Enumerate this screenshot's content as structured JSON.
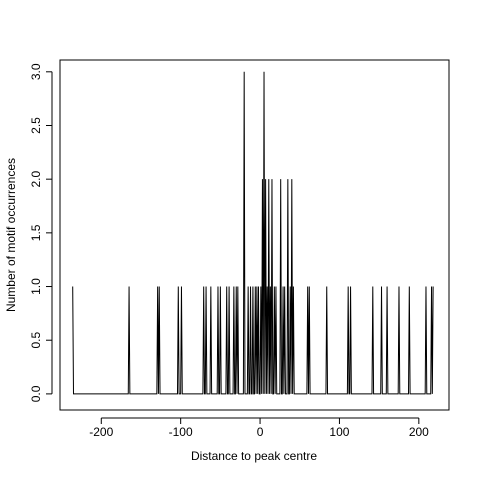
{
  "chart_data": {
    "type": "line",
    "xlabel": "Distance to peak centre",
    "ylabel": "Number of motif occurrences",
    "color": "#000000",
    "x": [
      -236,
      -235,
      -166,
      -165,
      -164,
      -130,
      -129,
      -128,
      -127,
      -126,
      -104,
      -103,
      -102,
      -100,
      -99,
      -98,
      -72,
      -71,
      -70,
      -69,
      -68,
      -67,
      -63,
      -62,
      -61,
      -54,
      -53,
      -52,
      -51,
      -50,
      -49,
      -43,
      -42,
      -41,
      -40,
      -39,
      -38,
      -34,
      -33,
      -32,
      -31,
      -30,
      -29,
      -28,
      -27,
      -21,
      -20,
      -19,
      -16,
      -15,
      -14,
      -13,
      -12,
      -11,
      -10,
      -9,
      -8,
      -7,
      -6,
      -5,
      -4,
      -3,
      -2,
      -1,
      0,
      1,
      2,
      3,
      4,
      5,
      6,
      7,
      8,
      9,
      10,
      11,
      12,
      13,
      14,
      15,
      16,
      17,
      18,
      19,
      20,
      21,
      25,
      26,
      27,
      28,
      29,
      30,
      31,
      32,
      34,
      35,
      36,
      37,
      38,
      39,
      40,
      41,
      42,
      43,
      59,
      60,
      61,
      62,
      63,
      83,
      84,
      85,
      110,
      111,
      112,
      113,
      114,
      115,
      141,
      142,
      143,
      152,
      153,
      154,
      159,
      160,
      161,
      174,
      175,
      176,
      187,
      188,
      189,
      208,
      209,
      210,
      215,
      216,
      217,
      218
    ],
    "values": [
      1,
      0,
      0,
      1,
      0,
      0,
      1,
      0,
      1,
      0,
      0,
      1,
      0,
      0,
      1,
      0,
      0,
      1,
      0,
      0,
      1,
      0,
      0,
      1,
      0,
      0,
      1,
      0,
      0,
      1,
      0,
      0,
      1,
      0,
      0,
      1,
      0,
      0,
      1,
      0,
      0,
      1,
      0,
      1,
      0,
      0,
      3,
      0,
      0,
      1,
      0,
      0,
      1,
      0,
      0,
      1,
      0,
      0,
      1,
      0,
      1,
      0,
      1,
      0,
      0,
      1,
      0,
      2,
      0,
      3,
      0,
      2,
      0,
      1,
      0,
      2,
      0,
      1,
      0,
      2,
      0,
      0,
      1,
      0,
      1,
      0,
      0,
      2,
      0,
      0,
      1,
      0,
      1,
      0,
      0,
      2,
      0,
      0,
      1,
      0,
      2,
      0,
      1,
      0,
      0,
      1,
      0,
      1,
      0,
      0,
      1,
      0,
      0,
      1,
      0,
      0,
      1,
      0,
      0,
      1,
      0,
      0,
      1,
      0,
      0,
      1,
      0,
      0,
      1,
      0,
      0,
      1,
      0,
      0,
      1,
      0,
      0,
      1,
      0,
      1
    ],
    "xlim": [
      -252,
      238
    ],
    "ylim": [
      -0.15,
      3.11
    ],
    "xticks": [
      -200,
      -100,
      0,
      100,
      200
    ],
    "yticks": [
      {
        "value": 0,
        "label": "0.0"
      },
      {
        "value": 0.5,
        "label": "0.5"
      },
      {
        "value": 1,
        "label": "1.0"
      },
      {
        "value": 1.5,
        "label": "1.5"
      },
      {
        "value": 2,
        "label": "2.0"
      },
      {
        "value": 2.5,
        "label": "2.5"
      },
      {
        "value": 3,
        "label": "3.0"
      }
    ]
  }
}
